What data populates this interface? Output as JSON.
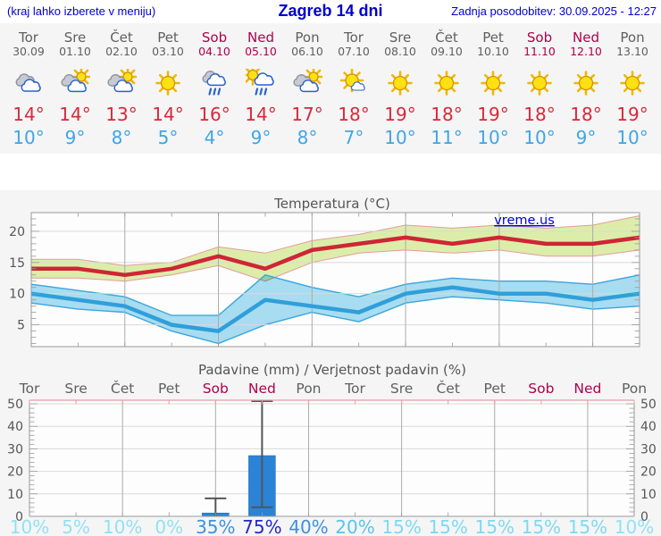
{
  "header": {
    "hint": "(kraj lahko izberete v meniju)",
    "title": "Zagreb 14 dni",
    "updated": "Zadnja posodobitev: 30.09.2025 - 12:27"
  },
  "watermark": "vreme.us",
  "days": [
    {
      "name": "Tor",
      "date": "30.09",
      "weekend": false,
      "icon": "cloudy",
      "tmax": "14°",
      "tmin": "10°",
      "pop": "10%"
    },
    {
      "name": "Sre",
      "date": "01.10",
      "weekend": false,
      "icon": "partly",
      "tmax": "14°",
      "tmin": "9°",
      "pop": "5%"
    },
    {
      "name": "Čet",
      "date": "02.10",
      "weekend": false,
      "icon": "partly",
      "tmax": "13°",
      "tmin": "8°",
      "pop": "10%"
    },
    {
      "name": "Pet",
      "date": "03.10",
      "weekend": false,
      "icon": "sunny",
      "tmax": "14°",
      "tmin": "5°",
      "pop": "0%"
    },
    {
      "name": "Sob",
      "date": "04.10",
      "weekend": true,
      "icon": "rain",
      "tmax": "16°",
      "tmin": "4°",
      "pop": "35%"
    },
    {
      "name": "Ned",
      "date": "05.10",
      "weekend": true,
      "icon": "sunrain",
      "tmax": "14°",
      "tmin": "9°",
      "pop": "75%"
    },
    {
      "name": "Pon",
      "date": "06.10",
      "weekend": false,
      "icon": "partly",
      "tmax": "17°",
      "tmin": "8°",
      "pop": "40%"
    },
    {
      "name": "Tor",
      "date": "07.10",
      "weekend": false,
      "icon": "mostlysunny",
      "tmax": "18°",
      "tmin": "7°",
      "pop": "20%"
    },
    {
      "name": "Sre",
      "date": "08.10",
      "weekend": false,
      "icon": "sunny",
      "tmax": "19°",
      "tmin": "10°",
      "pop": "15%"
    },
    {
      "name": "Čet",
      "date": "09.10",
      "weekend": false,
      "icon": "sunny",
      "tmax": "18°",
      "tmin": "11°",
      "pop": "15%"
    },
    {
      "name": "Pet",
      "date": "10.10",
      "weekend": false,
      "icon": "sunny",
      "tmax": "19°",
      "tmin": "10°",
      "pop": "15%"
    },
    {
      "name": "Sob",
      "date": "11.10",
      "weekend": true,
      "icon": "sunny",
      "tmax": "18°",
      "tmin": "10°",
      "pop": "15%"
    },
    {
      "name": "Ned",
      "date": "12.10",
      "weekend": true,
      "icon": "sunny",
      "tmax": "18°",
      "tmin": "9°",
      "pop": "15%"
    },
    {
      "name": "Pon",
      "date": "13.10",
      "weekend": false,
      "icon": "sunny",
      "tmax": "19°",
      "tmin": "10°",
      "pop": "10%"
    }
  ],
  "chart_data": [
    {
      "type": "line",
      "title": "Temperatura (°C)",
      "x_categories": [
        "Tor",
        "Sre",
        "Čet",
        "Pet",
        "Sob",
        "Ned",
        "Pon",
        "Tor",
        "Sre",
        "Čet",
        "Pet",
        "Sob",
        "Ned",
        "Pon"
      ],
      "ylim": [
        1.5,
        23
      ],
      "yticks": [
        5,
        10,
        15,
        20
      ],
      "grid": true,
      "legend": "none",
      "series": [
        {
          "name": "max-temp",
          "color": "#cf2535",
          "values": [
            14,
            14,
            13,
            14,
            16,
            14,
            17,
            18,
            19,
            18,
            19,
            18,
            18,
            19
          ]
        },
        {
          "name": "max-temp-band-high",
          "values": [
            15.5,
            15.5,
            14.5,
            15,
            17.5,
            16.5,
            18.5,
            19.5,
            21,
            20.5,
            21,
            20.5,
            21,
            22.5
          ]
        },
        {
          "name": "max-temp-band-low",
          "values": [
            12.5,
            12.5,
            12,
            13,
            14.5,
            12,
            15,
            16.5,
            17,
            16.5,
            17,
            16,
            16,
            17
          ]
        },
        {
          "name": "min-temp",
          "color": "#2f9fdb",
          "values": [
            10,
            9,
            8,
            5,
            4,
            9,
            8,
            7,
            10,
            11,
            10,
            10,
            9,
            10
          ]
        },
        {
          "name": "min-temp-band-high",
          "values": [
            11.5,
            10.5,
            9.5,
            6.5,
            6.5,
            13,
            11,
            9.5,
            11.5,
            12.5,
            12,
            12,
            11.5,
            13
          ]
        },
        {
          "name": "min-temp-band-low",
          "values": [
            8.5,
            7.5,
            7,
            4,
            2,
            5,
            7,
            5.5,
            8.5,
            9.5,
            9,
            8.5,
            7.5,
            8
          ]
        }
      ]
    },
    {
      "type": "bar",
      "title": "Padavine (mm) / Verjetnost padavin (%)",
      "categories": [
        "Tor",
        "Sre",
        "Čet",
        "Pet",
        "Sob",
        "Ned",
        "Pon",
        "Tor",
        "Sre",
        "Čet",
        "Pet",
        "Sob",
        "Ned",
        "Pon"
      ],
      "values": [
        0,
        0,
        0,
        0,
        1.5,
        27,
        0,
        0,
        0,
        0,
        0,
        0,
        0,
        0
      ],
      "whisker_low": [
        null,
        null,
        null,
        null,
        0,
        4,
        null,
        null,
        null,
        null,
        null,
        null,
        null,
        null
      ],
      "whisker_high": [
        null,
        null,
        null,
        null,
        8,
        51.5,
        null,
        null,
        null,
        null,
        null,
        null,
        null,
        null
      ],
      "probabilities_percent": [
        10,
        5,
        10,
        0,
        35,
        75,
        40,
        20,
        15,
        15,
        15,
        15,
        15,
        10
      ],
      "ylim": [
        0,
        51.6
      ],
      "yticks": [
        0,
        10,
        20,
        30,
        40,
        50
      ]
    }
  ],
  "colors": {
    "header_blue": "#0000cd",
    "day_gray": "#5f5f5f",
    "weekend_crimson": "#b0014b",
    "tmax_red": "#d7293a",
    "tmin_blue": "#3fa5e6",
    "panel_bg": "#f5f5f5",
    "plot_bg": "#fdfdfd",
    "band_green": "#dcedaa",
    "band_green_edge": "#e59a9a",
    "band_cyan": "#a9def2",
    "band_cyan_edge": "#3aa5dd",
    "line_red": "#cf2535",
    "line_blue": "#2f9fdb",
    "grid_major": "#ababab",
    "grid_minor": "#d9d9d9",
    "axis_gray": "#999999",
    "label_gray": "#555555",
    "bar_blue": "#2b83d6",
    "whisker_gray": "#555555",
    "precip_top_pink": "#e59aab",
    "watermark_blue": "#0000e0",
    "pop_low": "#8fe2f6",
    "pop_15": "#7bdaf3",
    "pop_20": "#55c5ee",
    "pop_mid": "#3c92e0",
    "pop_high": "#2128c8"
  }
}
